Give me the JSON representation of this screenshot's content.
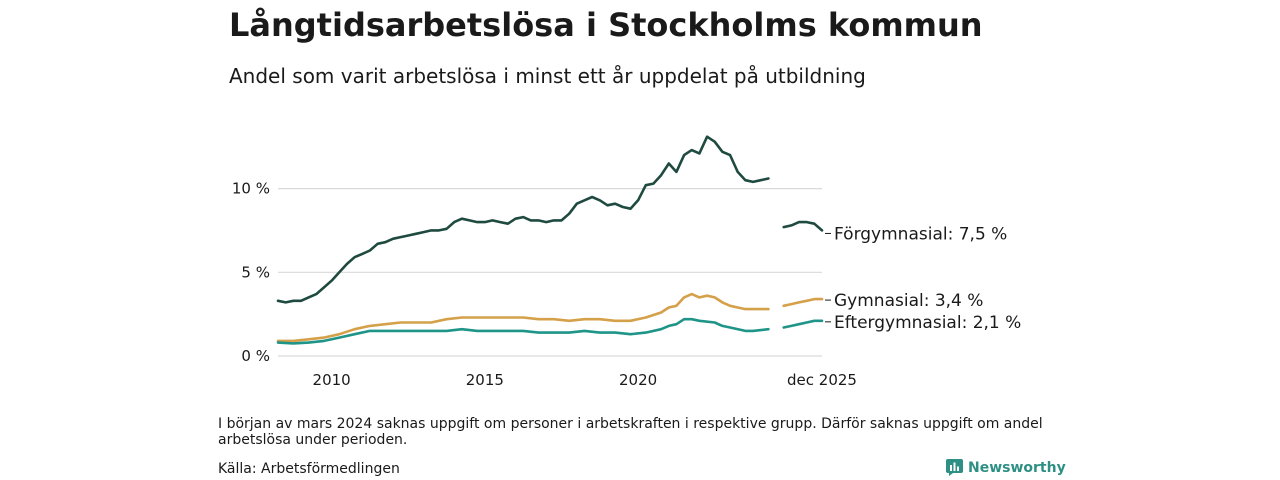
{
  "header": {
    "title": "Långtidsarbetslösa i Stockholms kommun",
    "subtitle": "Andel som varit arbetslösa i minst ett år uppdelat på utbildning"
  },
  "footer": {
    "note": "I början av mars 2024 saknas uppgift om personer i arbetskraften i respektive grupp. Därför saknas uppgift om andel arbetslösa under perioden.",
    "source": "Källa: Arbetsförmedlingen",
    "brand": "Newsworthy"
  },
  "colors": {
    "forgymnasial": "#1f4a40",
    "gymnasial": "#d4a04a",
    "eftergymnasial": "#1f9488",
    "grid": "#d9d9d9",
    "brand": "#2e8f85"
  },
  "chart_data": {
    "type": "line",
    "title": "Långtidsarbetslösa i Stockholms kommun",
    "subtitle": "Andel som varit arbetslösa i minst ett år uppdelat på utbildning",
    "xlabel": "",
    "ylabel": "",
    "xlim": [
      2008.25,
      2026.0
    ],
    "ylim": [
      0,
      13.5
    ],
    "x_ticks": [
      {
        "value": 2010,
        "label": "2010"
      },
      {
        "value": 2015,
        "label": "2015"
      },
      {
        "value": 2020,
        "label": "2020"
      },
      {
        "value": 2026.0,
        "label": "dec 2025"
      }
    ],
    "y_ticks": [
      {
        "value": 0,
        "label": "0 %"
      },
      {
        "value": 5,
        "label": "5 %"
      },
      {
        "value": 10,
        "label": "10 %"
      }
    ],
    "grid": true,
    "gap": {
      "from": 2023.75,
      "to": 2024.5
    },
    "series": [
      {
        "name": "Förgymnasial",
        "end_label": "Förgymnasial: 7,5 %",
        "color_key": "forgymnasial",
        "points": [
          [
            2008.25,
            3.3
          ],
          [
            2008.5,
            3.2
          ],
          [
            2008.75,
            3.3
          ],
          [
            2009.0,
            3.3
          ],
          [
            2009.25,
            3.5
          ],
          [
            2009.5,
            3.7
          ],
          [
            2009.75,
            4.1
          ],
          [
            2010.0,
            4.5
          ],
          [
            2010.25,
            5.0
          ],
          [
            2010.5,
            5.5
          ],
          [
            2010.75,
            5.9
          ],
          [
            2011.0,
            6.1
          ],
          [
            2011.25,
            6.3
          ],
          [
            2011.5,
            6.7
          ],
          [
            2011.75,
            6.8
          ],
          [
            2012.0,
            7.0
          ],
          [
            2012.25,
            7.1
          ],
          [
            2012.5,
            7.2
          ],
          [
            2012.75,
            7.3
          ],
          [
            2013.0,
            7.4
          ],
          [
            2013.25,
            7.5
          ],
          [
            2013.5,
            7.5
          ],
          [
            2013.75,
            7.6
          ],
          [
            2014.0,
            8.0
          ],
          [
            2014.25,
            8.2
          ],
          [
            2014.5,
            8.1
          ],
          [
            2014.75,
            8.0
          ],
          [
            2015.0,
            8.0
          ],
          [
            2015.25,
            8.1
          ],
          [
            2015.5,
            8.0
          ],
          [
            2015.75,
            7.9
          ],
          [
            2016.0,
            8.2
          ],
          [
            2016.25,
            8.3
          ],
          [
            2016.5,
            8.1
          ],
          [
            2016.75,
            8.1
          ],
          [
            2017.0,
            8.0
          ],
          [
            2017.25,
            8.1
          ],
          [
            2017.5,
            8.1
          ],
          [
            2017.75,
            8.5
          ],
          [
            2018.0,
            9.1
          ],
          [
            2018.25,
            9.3
          ],
          [
            2018.5,
            9.5
          ],
          [
            2018.75,
            9.3
          ],
          [
            2019.0,
            9.0
          ],
          [
            2019.25,
            9.1
          ],
          [
            2019.5,
            8.9
          ],
          [
            2019.75,
            8.8
          ],
          [
            2020.0,
            9.3
          ],
          [
            2020.25,
            10.2
          ],
          [
            2020.5,
            10.3
          ],
          [
            2020.75,
            10.8
          ],
          [
            2021.0,
            11.5
          ],
          [
            2021.25,
            11.0
          ],
          [
            2021.5,
            12.0
          ],
          [
            2021.75,
            12.3
          ],
          [
            2022.0,
            12.1
          ],
          [
            2022.25,
            13.1
          ],
          [
            2022.5,
            12.8
          ],
          [
            2022.75,
            12.2
          ],
          [
            2023.0,
            12.0
          ],
          [
            2023.25,
            11.0
          ],
          [
            2023.5,
            10.5
          ],
          [
            2023.75,
            10.4
          ],
          [
            2024.0,
            10.5
          ],
          [
            2024.25,
            10.6
          ],
          null,
          [
            2024.75,
            7.7
          ],
          [
            2025.0,
            7.8
          ],
          [
            2025.25,
            8.0
          ],
          [
            2025.5,
            8.0
          ],
          [
            2025.75,
            7.9
          ],
          [
            2026.0,
            7.5
          ]
        ]
      },
      {
        "name": "Gymnasial",
        "end_label": "Gymnasial: 3,4 %",
        "color_key": "gymnasial",
        "points": [
          [
            2008.25,
            0.9
          ],
          [
            2008.75,
            0.9
          ],
          [
            2009.25,
            1.0
          ],
          [
            2009.75,
            1.1
          ],
          [
            2010.25,
            1.3
          ],
          [
            2010.75,
            1.6
          ],
          [
            2011.25,
            1.8
          ],
          [
            2011.75,
            1.9
          ],
          [
            2012.25,
            2.0
          ],
          [
            2012.75,
            2.0
          ],
          [
            2013.25,
            2.0
          ],
          [
            2013.75,
            2.2
          ],
          [
            2014.25,
            2.3
          ],
          [
            2014.75,
            2.3
          ],
          [
            2015.25,
            2.3
          ],
          [
            2015.75,
            2.3
          ],
          [
            2016.25,
            2.3
          ],
          [
            2016.75,
            2.2
          ],
          [
            2017.25,
            2.2
          ],
          [
            2017.75,
            2.1
          ],
          [
            2018.25,
            2.2
          ],
          [
            2018.75,
            2.2
          ],
          [
            2019.25,
            2.1
          ],
          [
            2019.75,
            2.1
          ],
          [
            2020.25,
            2.3
          ],
          [
            2020.75,
            2.6
          ],
          [
            2021.0,
            2.9
          ],
          [
            2021.25,
            3.0
          ],
          [
            2021.5,
            3.5
          ],
          [
            2021.75,
            3.7
          ],
          [
            2022.0,
            3.5
          ],
          [
            2022.25,
            3.6
          ],
          [
            2022.5,
            3.5
          ],
          [
            2022.75,
            3.2
          ],
          [
            2023.0,
            3.0
          ],
          [
            2023.25,
            2.9
          ],
          [
            2023.5,
            2.8
          ],
          [
            2023.75,
            2.8
          ],
          [
            2024.25,
            2.8
          ],
          null,
          [
            2024.75,
            3.0
          ],
          [
            2025.0,
            3.1
          ],
          [
            2025.25,
            3.2
          ],
          [
            2025.5,
            3.3
          ],
          [
            2025.75,
            3.4
          ],
          [
            2026.0,
            3.4
          ]
        ]
      },
      {
        "name": "Eftergymnasial",
        "end_label": "Eftergymnasial: 2,1 %",
        "color_key": "eftergymnasial",
        "points": [
          [
            2008.25,
            0.8
          ],
          [
            2008.75,
            0.75
          ],
          [
            2009.25,
            0.8
          ],
          [
            2009.75,
            0.9
          ],
          [
            2010.25,
            1.1
          ],
          [
            2010.75,
            1.3
          ],
          [
            2011.25,
            1.5
          ],
          [
            2011.75,
            1.5
          ],
          [
            2012.25,
            1.5
          ],
          [
            2012.75,
            1.5
          ],
          [
            2013.25,
            1.5
          ],
          [
            2013.75,
            1.5
          ],
          [
            2014.25,
            1.6
          ],
          [
            2014.75,
            1.5
          ],
          [
            2015.25,
            1.5
          ],
          [
            2015.75,
            1.5
          ],
          [
            2016.25,
            1.5
          ],
          [
            2016.75,
            1.4
          ],
          [
            2017.25,
            1.4
          ],
          [
            2017.75,
            1.4
          ],
          [
            2018.25,
            1.5
          ],
          [
            2018.75,
            1.4
          ],
          [
            2019.25,
            1.4
          ],
          [
            2019.75,
            1.3
          ],
          [
            2020.25,
            1.4
          ],
          [
            2020.75,
            1.6
          ],
          [
            2021.0,
            1.8
          ],
          [
            2021.25,
            1.9
          ],
          [
            2021.5,
            2.2
          ],
          [
            2021.75,
            2.2
          ],
          [
            2022.0,
            2.1
          ],
          [
            2022.5,
            2.0
          ],
          [
            2022.75,
            1.8
          ],
          [
            2023.0,
            1.7
          ],
          [
            2023.5,
            1.5
          ],
          [
            2023.75,
            1.5
          ],
          [
            2024.25,
            1.6
          ],
          null,
          [
            2024.75,
            1.7
          ],
          [
            2025.0,
            1.8
          ],
          [
            2025.25,
            1.9
          ],
          [
            2025.5,
            2.0
          ],
          [
            2025.75,
            2.1
          ],
          [
            2026.0,
            2.1
          ]
        ]
      }
    ]
  }
}
